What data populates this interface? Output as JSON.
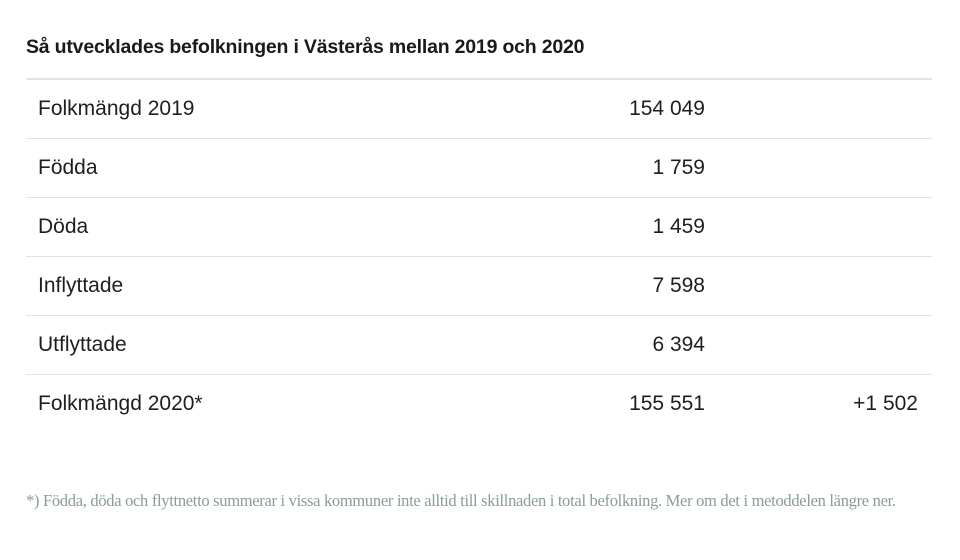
{
  "title": "Så utvecklades befolkningen i Västerås mellan 2019 och 2020",
  "rows": [
    {
      "label": "Folkmängd 2019",
      "value": "154 049",
      "change": ""
    },
    {
      "label": "Födda",
      "value": "1 759",
      "change": ""
    },
    {
      "label": "Döda",
      "value": "1 459",
      "change": ""
    },
    {
      "label": "Inflyttade",
      "value": "7 598",
      "change": ""
    },
    {
      "label": "Utflyttade",
      "value": "6 394",
      "change": ""
    },
    {
      "label": "Folkmängd 2020*",
      "value": "155 551",
      "change": "+1 502"
    }
  ],
  "footnote": "*) Födda, döda och flyttnetto summerar i vissa kommuner inte alltid till skillnaden i total befolkning. Mer om det i metoddelen längre ner."
}
